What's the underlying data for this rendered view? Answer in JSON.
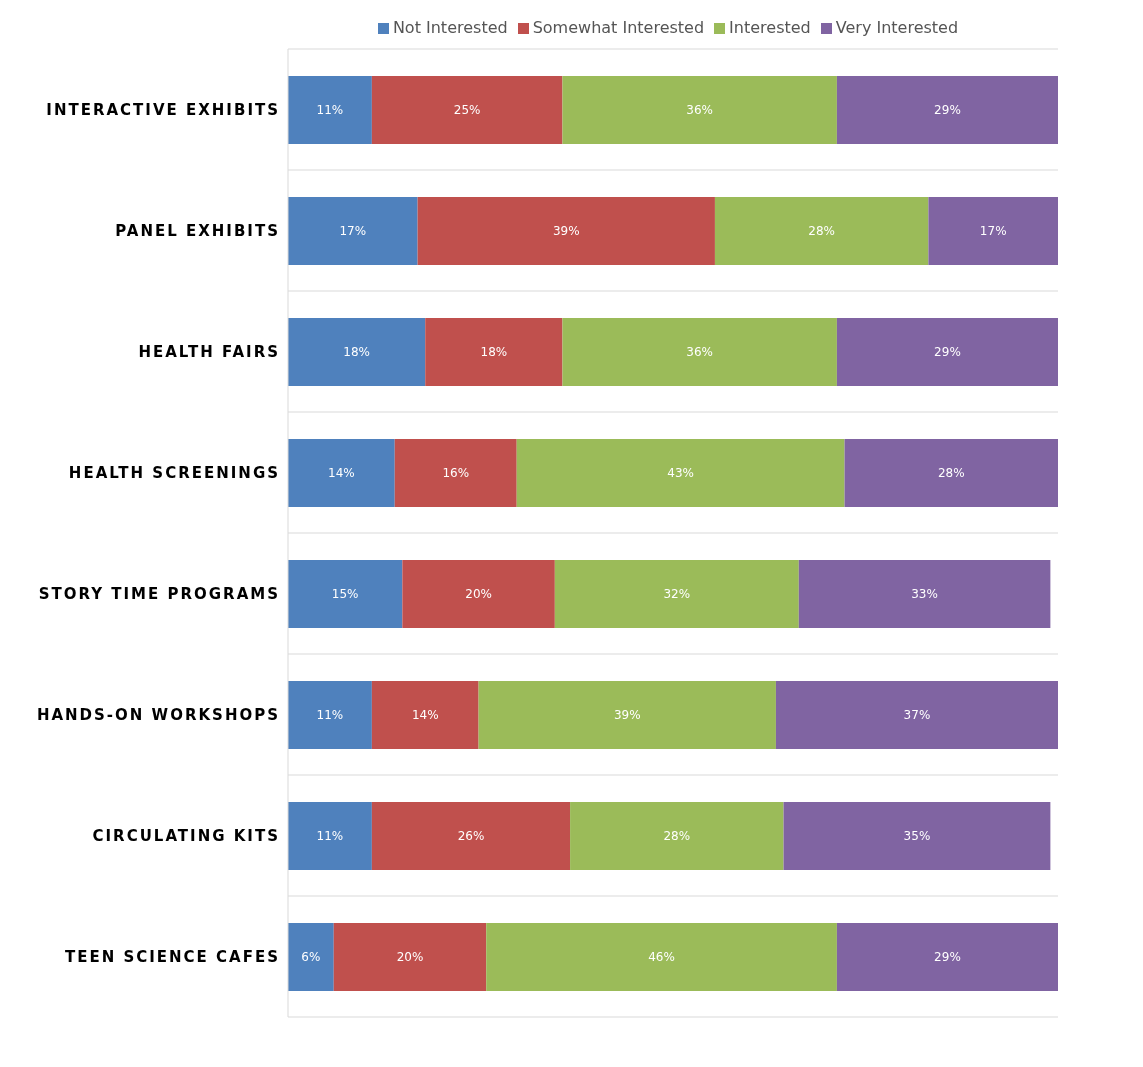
{
  "chart_data": {
    "type": "bar",
    "orientation": "horizontal",
    "stacked": true,
    "legend": "top",
    "grid": "y",
    "tick_labels": "y",
    "categories": [
      "INTERACTIVE EXHIBITS",
      "PANEL EXHIBITS",
      "HEALTH FAIRS",
      "HEALTH SCREENINGS",
      "STORY TIME PROGRAMS",
      "HANDS-ON WORKSHOPS",
      "CIRCULATING KITS",
      "TEEN SCIENCE CAFES"
    ],
    "series": [
      {
        "name": "Not Interested",
        "color": "#4f81bd",
        "values": [
          11,
          17,
          18,
          14,
          15,
          11,
          11,
          6
        ],
        "value_labels": [
          "11%",
          "17%",
          "18%",
          "14%",
          "15%",
          "11%",
          "11%",
          "6%"
        ]
      },
      {
        "name": "Somewhat Interested",
        "color": "#c0504d",
        "values": [
          25,
          39,
          18,
          16,
          20,
          14,
          26,
          20
        ],
        "value_labels": [
          "25%",
          "39%",
          "18%",
          "16%",
          "20%",
          "14%",
          "26%",
          "20%"
        ]
      },
      {
        "name": "Interested",
        "color": "#9bbb59",
        "values": [
          36,
          28,
          36,
          43,
          32,
          39,
          28,
          46
        ],
        "value_labels": [
          "36%",
          "28%",
          "36%",
          "43%",
          "32%",
          "39%",
          "28%",
          "46%"
        ]
      },
      {
        "name": "Very Interested",
        "color": "#8064a2",
        "values": [
          29,
          17,
          29,
          28,
          33,
          37,
          35,
          29
        ],
        "value_labels": [
          "29%",
          "17%",
          "29%",
          "28%",
          "33%",
          "37%",
          "35%",
          "29%"
        ]
      }
    ]
  }
}
